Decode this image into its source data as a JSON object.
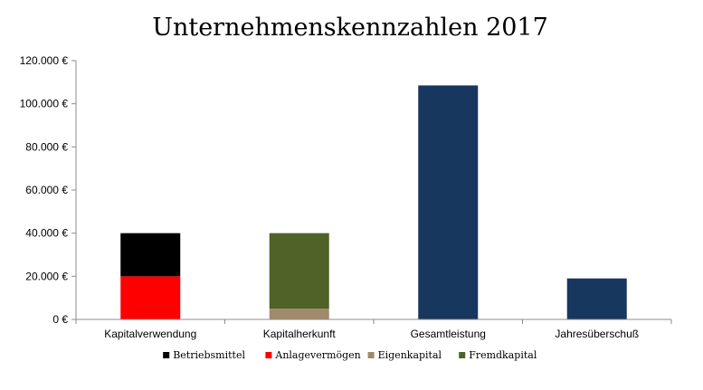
{
  "chart_data": {
    "type": "bar",
    "stacked": true,
    "title": "Unternehmenskennzahlen 2017",
    "xlabel": "",
    "ylabel": "",
    "ylim": [
      0,
      120000
    ],
    "y_ticks": [
      0,
      20000,
      40000,
      60000,
      80000,
      100000,
      120000
    ],
    "y_tick_labels": [
      "0 €",
      "20.000 €",
      "40.000 €",
      "60.000 €",
      "80.000 €",
      "100.000 €",
      "120.000 €"
    ],
    "categories": [
      "Kapitalverwendung",
      "Kapitalherkunft",
      "Gesamtleistung",
      "Jahresüberschuß"
    ],
    "grid": false,
    "legend_position": "bottom",
    "series": [
      {
        "name": "Anlagevermögen",
        "color": "#ff0000",
        "values": [
          20000,
          null,
          null,
          null
        ]
      },
      {
        "name": "Betriebsmittel",
        "color": "#000000",
        "values": [
          20000,
          null,
          null,
          null
        ]
      },
      {
        "name": "Eigenkapital",
        "color": "#a08a6b",
        "values": [
          null,
          5000,
          null,
          null
        ]
      },
      {
        "name": "Fremdkapital",
        "color": "#4f6228",
        "values": [
          null,
          35000,
          null,
          null
        ]
      },
      {
        "name": "",
        "color": "#17375e",
        "values": [
          null,
          null,
          108500,
          19000
        ]
      }
    ],
    "legend": [
      {
        "name": "Betriebsmittel",
        "color": "#000000"
      },
      {
        "name": "Anlagevermögen",
        "color": "#ff0000"
      },
      {
        "name": "Eigenkapital",
        "color": "#a08a6b"
      },
      {
        "name": "Fremdkapital",
        "color": "#4f6228"
      }
    ]
  }
}
